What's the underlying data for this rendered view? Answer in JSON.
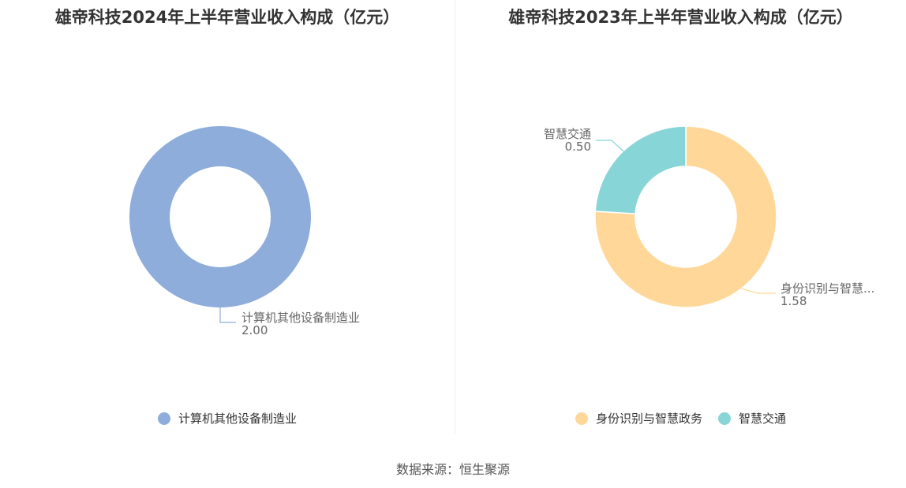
{
  "chart_data": [
    {
      "type": "pie",
      "title": "雄帝科技2024年上半年营业收入构成（亿元）",
      "donut": true,
      "slices": [
        {
          "label": "计算机其他设备制造业",
          "callout_label": "计算机其他设备制造业",
          "value": 2.0,
          "value_text": "2.00",
          "color": "#8eaddb"
        }
      ],
      "legend": [
        "计算机其他设备制造业"
      ],
      "legend_position": "bottom"
    },
    {
      "type": "pie",
      "title": "雄帝科技2023年上半年营业收入构成（亿元）",
      "donut": true,
      "slices": [
        {
          "label": "身份识别与智慧政务",
          "callout_label": "身份识别与智慧...",
          "value": 1.58,
          "value_text": "1.58",
          "color": "#ffd899"
        },
        {
          "label": "智慧交通",
          "callout_label": "智慧交通",
          "value": 0.5,
          "value_text": "0.50",
          "color": "#88d5d8"
        }
      ],
      "legend": [
        "身份识别与智慧政务",
        "智慧交通"
      ],
      "legend_position": "bottom"
    }
  ],
  "source_text": "数据来源：恒生聚源"
}
